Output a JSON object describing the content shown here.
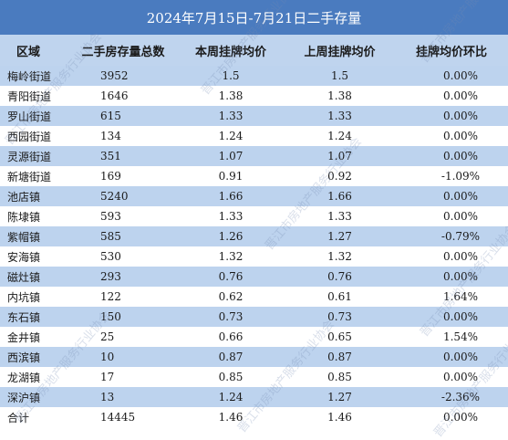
{
  "table": {
    "title": "2024年7月15日-7月21日二手存量",
    "headers": [
      "区域",
      "二手房存量总数",
      "本周挂牌均价",
      "上周挂牌均价",
      "挂牌均价环比"
    ],
    "rows": [
      {
        "region": "梅岭街道",
        "stock": "3952",
        "this_week": "1.5",
        "last_week": "1.5",
        "change": "0.00%"
      },
      {
        "region": "青阳街道",
        "stock": "1646",
        "this_week": "1.38",
        "last_week": "1.38",
        "change": "0.00%"
      },
      {
        "region": "罗山街道",
        "stock": "615",
        "this_week": "1.33",
        "last_week": "1.33",
        "change": "0.00%"
      },
      {
        "region": "西园街道",
        "stock": "134",
        "this_week": "1.24",
        "last_week": "1.24",
        "change": "0.00%"
      },
      {
        "region": "灵源街道",
        "stock": "351",
        "this_week": "1.07",
        "last_week": "1.07",
        "change": "0.00%"
      },
      {
        "region": "新塘街道",
        "stock": "169",
        "this_week": "0.91",
        "last_week": "0.92",
        "change": "-1.09%"
      },
      {
        "region": "池店镇",
        "stock": "5240",
        "this_week": "1.66",
        "last_week": "1.66",
        "change": "0.00%"
      },
      {
        "region": "陈埭镇",
        "stock": "593",
        "this_week": "1.33",
        "last_week": "1.33",
        "change": "0.00%"
      },
      {
        "region": "紫帽镇",
        "stock": "585",
        "this_week": "1.26",
        "last_week": "1.27",
        "change": "-0.79%"
      },
      {
        "region": "安海镇",
        "stock": "530",
        "this_week": "1.32",
        "last_week": "1.32",
        "change": "0.00%"
      },
      {
        "region": "磁灶镇",
        "stock": "293",
        "this_week": "0.76",
        "last_week": "0.76",
        "change": "0.00%"
      },
      {
        "region": "内坑镇",
        "stock": "122",
        "this_week": "0.62",
        "last_week": "0.61",
        "change": "1.64%"
      },
      {
        "region": "东石镇",
        "stock": "150",
        "this_week": "0.73",
        "last_week": "0.73",
        "change": "0.00%"
      },
      {
        "region": "金井镇",
        "stock": "25",
        "this_week": "0.66",
        "last_week": "0.65",
        "change": "1.54%"
      },
      {
        "region": "西滨镇",
        "stock": "10",
        "this_week": "0.87",
        "last_week": "0.87",
        "change": "0.00%"
      },
      {
        "region": "龙湖镇",
        "stock": "17",
        "this_week": "0.85",
        "last_week": "0.85",
        "change": "0.00%"
      },
      {
        "region": "深沪镇",
        "stock": "13",
        "this_week": "1.24",
        "last_week": "1.27",
        "change": "-2.36%"
      },
      {
        "region": "合计",
        "stock": "14445",
        "this_week": "1.46",
        "last_week": "1.46",
        "change": "0.00%"
      }
    ]
  },
  "watermark_text": "晋江市房地产服务行业协会",
  "colors": {
    "title_bg": "#4a7bbf",
    "header_bg": "#bfd4ee",
    "stripe_bg": "#bdd3ee"
  }
}
